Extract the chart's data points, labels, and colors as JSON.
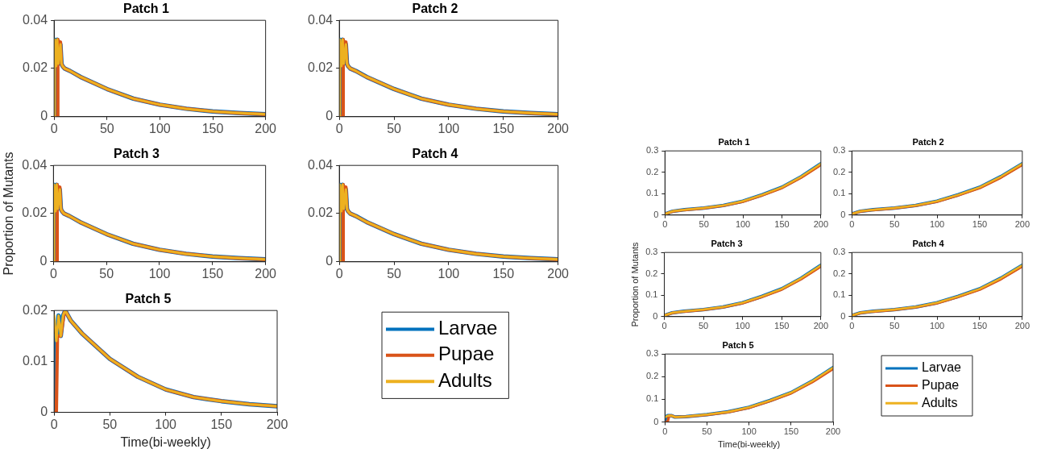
{
  "chart_data": [
    {
      "type": "line",
      "title": "Patch 1",
      "xlim": [
        0,
        200
      ],
      "xticks": [
        0,
        50,
        100,
        150,
        200
      ],
      "ylim": [
        0,
        0.04
      ],
      "yticks": [
        0,
        0.02,
        0.04
      ],
      "grid": false,
      "series": [
        {
          "color": "#0072bd",
          "x": [
            0,
            0.5,
            2,
            3,
            4,
            6,
            7,
            8,
            10,
            15,
            25,
            50,
            75,
            100,
            125,
            150,
            175,
            200
          ],
          "values": [
            0,
            0.032,
            0.021,
            0.032,
            0.022,
            0.03,
            0.022,
            0.021,
            0.02,
            0.019,
            0.0165,
            0.0115,
            0.0075,
            0.005,
            0.0033,
            0.0022,
            0.0015,
            0.001
          ]
        },
        {
          "color": "#d95319",
          "x": [
            0,
            3,
            3.5,
            5,
            6,
            7,
            8,
            10,
            15,
            25,
            50,
            75,
            100,
            125,
            150,
            175,
            200
          ],
          "values": [
            0,
            0,
            0.032,
            0.03,
            0.031,
            0.022,
            0.021,
            0.02,
            0.019,
            0.0165,
            0.0115,
            0.0075,
            0.005,
            0.0033,
            0.0022,
            0.0015,
            0.001
          ]
        },
        {
          "color": "#edb120",
          "x": [
            0,
            0.5,
            2,
            3,
            4,
            6,
            7,
            8,
            10,
            15,
            25,
            50,
            75,
            100,
            125,
            150,
            175,
            200
          ],
          "values": [
            0,
            0.032,
            0.021,
            0.032,
            0.022,
            0.03,
            0.022,
            0.021,
            0.02,
            0.019,
            0.0165,
            0.0115,
            0.0075,
            0.005,
            0.0033,
            0.0022,
            0.0015,
            0.001
          ]
        }
      ]
    },
    {
      "type": "line",
      "title": "Patch 2",
      "xlim": [
        0,
        200
      ],
      "xticks": [
        0,
        50,
        100,
        150,
        200
      ],
      "ylim": [
        0,
        0.04
      ],
      "yticks": [
        0,
        0.02,
        0.04
      ],
      "grid": false,
      "series": [
        {
          "color": "#0072bd",
          "x": [
            0,
            0.5,
            2,
            3,
            4,
            6,
            7,
            8,
            10,
            15,
            25,
            50,
            75,
            100,
            125,
            150,
            175,
            200
          ],
          "values": [
            0,
            0.032,
            0.021,
            0.032,
            0.022,
            0.03,
            0.022,
            0.021,
            0.02,
            0.019,
            0.0165,
            0.0115,
            0.0075,
            0.005,
            0.0033,
            0.0022,
            0.0015,
            0.001
          ]
        },
        {
          "color": "#d95319",
          "x": [
            0,
            3,
            3.5,
            5,
            6,
            7,
            8,
            10,
            15,
            25,
            50,
            75,
            100,
            125,
            150,
            175,
            200
          ],
          "values": [
            0,
            0,
            0.032,
            0.03,
            0.031,
            0.022,
            0.021,
            0.02,
            0.019,
            0.0165,
            0.0115,
            0.0075,
            0.005,
            0.0033,
            0.0022,
            0.0015,
            0.001
          ]
        },
        {
          "color": "#edb120",
          "x": [
            0,
            0.5,
            2,
            3,
            4,
            6,
            7,
            8,
            10,
            15,
            25,
            50,
            75,
            100,
            125,
            150,
            175,
            200
          ],
          "values": [
            0,
            0.032,
            0.021,
            0.032,
            0.022,
            0.03,
            0.022,
            0.021,
            0.02,
            0.019,
            0.0165,
            0.0115,
            0.0075,
            0.005,
            0.0033,
            0.0022,
            0.0015,
            0.001
          ]
        }
      ]
    },
    {
      "type": "line",
      "title": "Patch 3",
      "ylabel": "Proportion of Mutants",
      "xlim": [
        0,
        200
      ],
      "xticks": [
        0,
        50,
        100,
        150,
        200
      ],
      "ylim": [
        0,
        0.04
      ],
      "yticks": [
        0,
        0.02,
        0.04
      ],
      "grid": false,
      "series": [
        {
          "color": "#0072bd",
          "x": [
            0,
            0.5,
            2,
            3,
            4,
            6,
            7,
            8,
            10,
            15,
            25,
            50,
            75,
            100,
            125,
            150,
            175,
            200
          ],
          "values": [
            0,
            0.032,
            0.021,
            0.032,
            0.022,
            0.03,
            0.022,
            0.021,
            0.02,
            0.019,
            0.0165,
            0.0115,
            0.0075,
            0.005,
            0.0033,
            0.0022,
            0.0015,
            0.001
          ]
        },
        {
          "color": "#d95319",
          "x": [
            0,
            3,
            3.5,
            5,
            6,
            7,
            8,
            10,
            15,
            25,
            50,
            75,
            100,
            125,
            150,
            175,
            200
          ],
          "values": [
            0,
            0,
            0.032,
            0.03,
            0.031,
            0.022,
            0.021,
            0.02,
            0.019,
            0.0165,
            0.0115,
            0.0075,
            0.005,
            0.0033,
            0.0022,
            0.0015,
            0.001
          ]
        },
        {
          "color": "#edb120",
          "x": [
            0,
            0.5,
            2,
            3,
            4,
            6,
            7,
            8,
            10,
            15,
            25,
            50,
            75,
            100,
            125,
            150,
            175,
            200
          ],
          "values": [
            0,
            0.032,
            0.021,
            0.032,
            0.022,
            0.03,
            0.022,
            0.021,
            0.02,
            0.019,
            0.0165,
            0.0115,
            0.0075,
            0.005,
            0.0033,
            0.0022,
            0.0015,
            0.001
          ]
        }
      ]
    },
    {
      "type": "line",
      "title": "Patch 4",
      "xlim": [
        0,
        200
      ],
      "xticks": [
        0,
        50,
        100,
        150,
        200
      ],
      "ylim": [
        0,
        0.04
      ],
      "yticks": [
        0,
        0.02,
        0.04
      ],
      "grid": false,
      "series": [
        {
          "color": "#0072bd",
          "x": [
            0,
            0.5,
            2,
            3,
            4,
            6,
            7,
            8,
            10,
            15,
            25,
            50,
            75,
            100,
            125,
            150,
            175,
            200
          ],
          "values": [
            0,
            0.032,
            0.021,
            0.032,
            0.022,
            0.03,
            0.022,
            0.021,
            0.02,
            0.019,
            0.0165,
            0.0115,
            0.0075,
            0.005,
            0.0033,
            0.0022,
            0.0015,
            0.001
          ]
        },
        {
          "color": "#d95319",
          "x": [
            0,
            3,
            3.5,
            5,
            6,
            7,
            8,
            10,
            15,
            25,
            50,
            75,
            100,
            125,
            150,
            175,
            200
          ],
          "values": [
            0,
            0,
            0.032,
            0.03,
            0.031,
            0.022,
            0.021,
            0.02,
            0.019,
            0.0165,
            0.0115,
            0.0075,
            0.005,
            0.0033,
            0.0022,
            0.0015,
            0.001
          ]
        },
        {
          "color": "#edb120",
          "x": [
            0,
            0.5,
            2,
            3,
            4,
            6,
            7,
            8,
            10,
            15,
            25,
            50,
            75,
            100,
            125,
            150,
            175,
            200
          ],
          "values": [
            0,
            0.032,
            0.021,
            0.032,
            0.022,
            0.03,
            0.022,
            0.021,
            0.02,
            0.019,
            0.0165,
            0.0115,
            0.0075,
            0.005,
            0.0033,
            0.0022,
            0.0015,
            0.001
          ]
        }
      ]
    },
    {
      "type": "line",
      "title": "Patch 5",
      "xlabel": "Time(bi-weekly)",
      "xlim": [
        0,
        200
      ],
      "xticks": [
        0,
        50,
        100,
        150,
        200
      ],
      "ylim": [
        0,
        0.02
      ],
      "yticks": [
        0,
        0.01,
        0.02
      ],
      "grid": false,
      "legend": "right",
      "series": [
        {
          "name": "Larvae",
          "color": "#0072bd",
          "x": [
            0,
            1,
            2,
            4,
            6,
            8,
            10,
            15,
            25,
            50,
            75,
            100,
            125,
            150,
            175,
            200
          ],
          "values": [
            0,
            0.015,
            0.014,
            0.019,
            0.015,
            0.019,
            0.02,
            0.018,
            0.0155,
            0.0105,
            0.007,
            0.0045,
            0.003,
            0.0022,
            0.0016,
            0.0012
          ]
        },
        {
          "name": "Pupae",
          "color": "#d95319",
          "x": [
            0,
            2,
            3,
            6,
            9,
            10,
            15,
            25,
            50,
            75,
            100,
            125,
            150,
            175,
            200
          ],
          "values": [
            0,
            0,
            0.015,
            0.015,
            0.0195,
            0.02,
            0.018,
            0.0155,
            0.0105,
            0.007,
            0.0045,
            0.003,
            0.0022,
            0.0016,
            0.0012
          ]
        },
        {
          "name": "Adults",
          "color": "#edb120",
          "x": [
            0,
            0.5,
            2,
            4,
            6,
            8,
            10,
            15,
            25,
            50,
            75,
            100,
            125,
            150,
            175,
            200
          ],
          "values": [
            0.019,
            0.019,
            0.014,
            0.019,
            0.015,
            0.019,
            0.02,
            0.018,
            0.0155,
            0.0105,
            0.007,
            0.0045,
            0.003,
            0.0022,
            0.0016,
            0.0012
          ]
        }
      ]
    },
    {
      "type": "line",
      "title": "Patch 1",
      "xlim": [
        0,
        200
      ],
      "xticks": [
        0,
        50,
        100,
        150,
        200
      ],
      "ylim": [
        0,
        0.3
      ],
      "yticks": [
        0,
        0.1,
        0.2,
        0.3
      ],
      "grid": false,
      "series": [
        {
          "color": "#0072bd",
          "x": [
            0,
            10,
            25,
            50,
            75,
            100,
            125,
            150,
            175,
            200
          ],
          "values": [
            0.005,
            0.018,
            0.025,
            0.033,
            0.045,
            0.065,
            0.095,
            0.13,
            0.18,
            0.24
          ]
        },
        {
          "color": "#d95319",
          "x": [
            0,
            10,
            25,
            50,
            75,
            100,
            125,
            150,
            175,
            200
          ],
          "values": [
            0.005,
            0.017,
            0.024,
            0.032,
            0.044,
            0.063,
            0.093,
            0.127,
            0.176,
            0.235
          ]
        },
        {
          "color": "#edb120",
          "x": [
            0,
            10,
            25,
            50,
            75,
            100,
            125,
            150,
            175,
            200
          ],
          "values": [
            0.005,
            0.018,
            0.025,
            0.033,
            0.045,
            0.065,
            0.095,
            0.13,
            0.18,
            0.24
          ]
        }
      ]
    },
    {
      "type": "line",
      "title": "Patch 2",
      "xlim": [
        0,
        200
      ],
      "xticks": [
        0,
        50,
        100,
        150,
        200
      ],
      "ylim": [
        0,
        0.3
      ],
      "yticks": [
        0,
        0.1,
        0.2,
        0.3
      ],
      "grid": false,
      "series": [
        {
          "color": "#0072bd",
          "x": [
            0,
            10,
            25,
            50,
            75,
            100,
            125,
            150,
            175,
            200
          ],
          "values": [
            0.005,
            0.018,
            0.025,
            0.033,
            0.045,
            0.065,
            0.095,
            0.13,
            0.18,
            0.24
          ]
        },
        {
          "color": "#d95319",
          "x": [
            0,
            10,
            25,
            50,
            75,
            100,
            125,
            150,
            175,
            200
          ],
          "values": [
            0.005,
            0.017,
            0.024,
            0.032,
            0.044,
            0.063,
            0.093,
            0.127,
            0.176,
            0.235
          ]
        },
        {
          "color": "#edb120",
          "x": [
            0,
            10,
            25,
            50,
            75,
            100,
            125,
            150,
            175,
            200
          ],
          "values": [
            0.005,
            0.018,
            0.025,
            0.033,
            0.045,
            0.065,
            0.095,
            0.13,
            0.18,
            0.24
          ]
        }
      ]
    },
    {
      "type": "line",
      "title": "Patch 3",
      "ylabel": "Proportion of Mutants",
      "xlim": [
        0,
        200
      ],
      "xticks": [
        0,
        50,
        100,
        150,
        200
      ],
      "ylim": [
        0,
        0.3
      ],
      "yticks": [
        0,
        0.1,
        0.2,
        0.3
      ],
      "grid": false,
      "series": [
        {
          "color": "#0072bd",
          "x": [
            0,
            10,
            25,
            50,
            75,
            100,
            125,
            150,
            175,
            200
          ],
          "values": [
            0.005,
            0.018,
            0.025,
            0.033,
            0.045,
            0.065,
            0.095,
            0.13,
            0.18,
            0.24
          ]
        },
        {
          "color": "#d95319",
          "x": [
            0,
            10,
            25,
            50,
            75,
            100,
            125,
            150,
            175,
            200
          ],
          "values": [
            0.005,
            0.017,
            0.024,
            0.032,
            0.044,
            0.063,
            0.093,
            0.127,
            0.176,
            0.235
          ]
        },
        {
          "color": "#edb120",
          "x": [
            0,
            10,
            25,
            50,
            75,
            100,
            125,
            150,
            175,
            200
          ],
          "values": [
            0.005,
            0.018,
            0.025,
            0.033,
            0.045,
            0.065,
            0.095,
            0.13,
            0.18,
            0.24
          ]
        }
      ]
    },
    {
      "type": "line",
      "title": "Patch 4",
      "xlim": [
        0,
        200
      ],
      "xticks": [
        0,
        50,
        100,
        150,
        200
      ],
      "ylim": [
        0,
        0.3
      ],
      "yticks": [
        0,
        0.1,
        0.2,
        0.3
      ],
      "grid": false,
      "series": [
        {
          "color": "#0072bd",
          "x": [
            0,
            10,
            25,
            50,
            75,
            100,
            125,
            150,
            175,
            200
          ],
          "values": [
            0.005,
            0.018,
            0.025,
            0.033,
            0.045,
            0.065,
            0.095,
            0.13,
            0.18,
            0.24
          ]
        },
        {
          "color": "#d95319",
          "x": [
            0,
            10,
            25,
            50,
            75,
            100,
            125,
            150,
            175,
            200
          ],
          "values": [
            0.005,
            0.017,
            0.024,
            0.032,
            0.044,
            0.063,
            0.093,
            0.127,
            0.176,
            0.235
          ]
        },
        {
          "color": "#edb120",
          "x": [
            0,
            10,
            25,
            50,
            75,
            100,
            125,
            150,
            175,
            200
          ],
          "values": [
            0.005,
            0.018,
            0.025,
            0.033,
            0.045,
            0.065,
            0.095,
            0.13,
            0.18,
            0.24
          ]
        }
      ]
    },
    {
      "type": "line",
      "title": "Patch 5",
      "xlabel": "Time(bi-weekly)",
      "xlim": [
        0,
        200
      ],
      "xticks": [
        0,
        50,
        100,
        150,
        200
      ],
      "ylim": [
        0,
        0.3
      ],
      "yticks": [
        0,
        0.1,
        0.2,
        0.3
      ],
      "grid": false,
      "legend": "right",
      "series": [
        {
          "name": "Larvae",
          "color": "#0072bd",
          "x": [
            0,
            2,
            3,
            8,
            12,
            25,
            50,
            75,
            100,
            125,
            150,
            175,
            200
          ],
          "values": [
            0,
            0.025,
            0.028,
            0.028,
            0.022,
            0.024,
            0.033,
            0.045,
            0.065,
            0.095,
            0.13,
            0.18,
            0.24
          ]
        },
        {
          "name": "Pupae",
          "color": "#d95319",
          "x": [
            0,
            3,
            5,
            8,
            12,
            25,
            50,
            75,
            100,
            125,
            150,
            175,
            200
          ],
          "values": [
            0,
            0,
            0.028,
            0.028,
            0.022,
            0.024,
            0.032,
            0.044,
            0.063,
            0.093,
            0.127,
            0.176,
            0.235
          ]
        },
        {
          "name": "Adults",
          "color": "#edb120",
          "x": [
            0,
            3,
            8,
            12,
            25,
            50,
            75,
            100,
            125,
            150,
            175,
            200
          ],
          "values": [
            0.02,
            0.028,
            0.028,
            0.022,
            0.024,
            0.033,
            0.045,
            0.065,
            0.095,
            0.13,
            0.18,
            0.24
          ]
        }
      ]
    }
  ]
}
